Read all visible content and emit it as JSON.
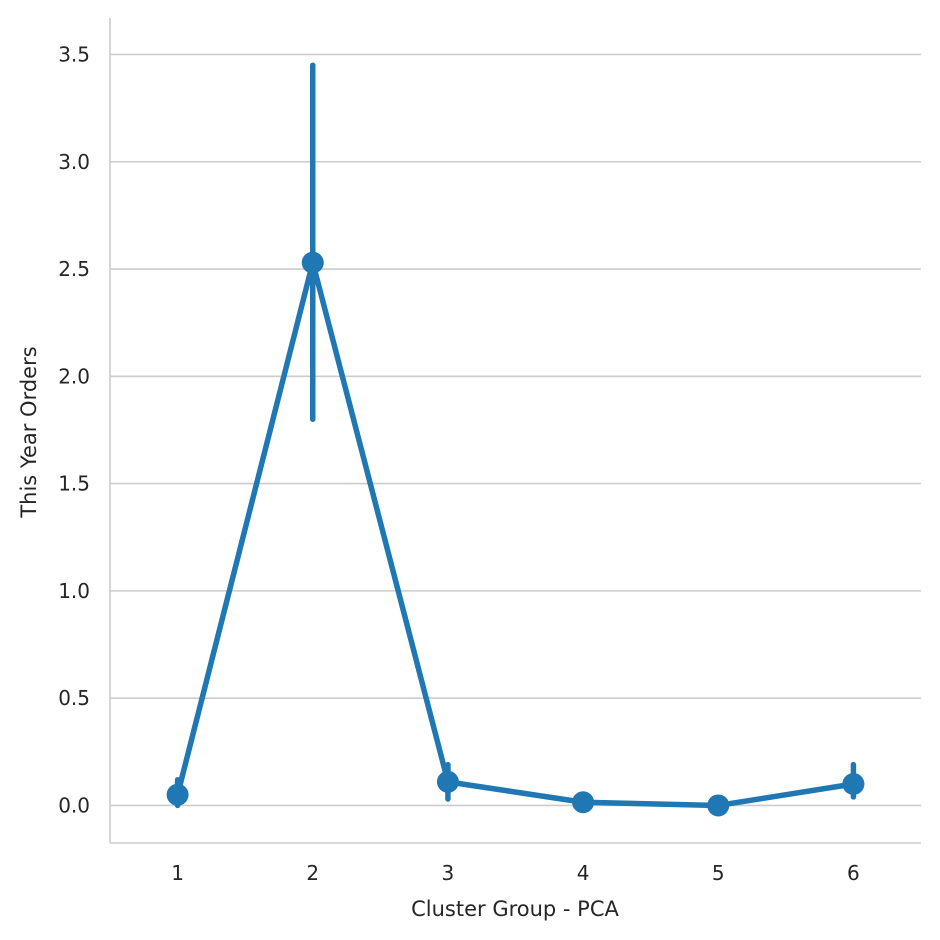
{
  "chart_data": {
    "type": "line",
    "title": "",
    "xlabel": "Cluster Group - PCA",
    "ylabel": "This Year Orders",
    "categories": [
      "1",
      "2",
      "3",
      "4",
      "5",
      "6"
    ],
    "series": [
      {
        "values": [
          0.05,
          2.53,
          0.11,
          0.015,
          0.0,
          0.1
        ],
        "ci_low": [
          0.0,
          1.8,
          0.03,
          0.0,
          0.0,
          0.04
        ],
        "ci_high": [
          0.12,
          3.45,
          0.19,
          0.03,
          0.01,
          0.19
        ],
        "color": "#1f77b4"
      }
    ],
    "yticks": [
      "0.0",
      "0.5",
      "1.0",
      "1.5",
      "2.0",
      "2.5",
      "3.0",
      "3.5"
    ],
    "ytick_values": [
      0.0,
      0.5,
      1.0,
      1.5,
      2.0,
      2.5,
      3.0,
      3.5
    ],
    "ylim": [
      -0.175,
      3.67
    ],
    "grid": "horizontal",
    "legend": "none",
    "colors": {
      "line": "#1f77b4",
      "grid": "#cccccc",
      "axis": "#cccccc",
      "text": "#262626"
    }
  }
}
